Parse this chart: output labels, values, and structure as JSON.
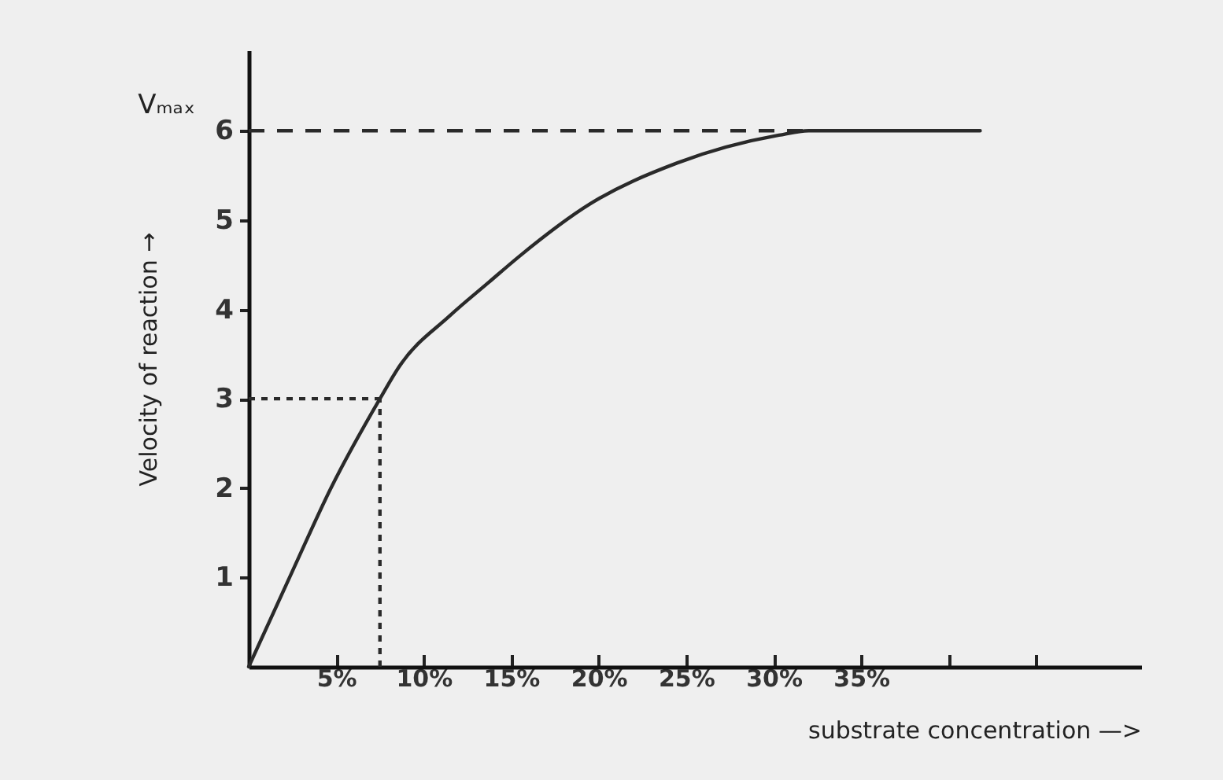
{
  "chart_data": {
    "type": "line",
    "xlabel": "substrate concentration —>",
    "ylabel": "Velocity of reaction →",
    "x": [
      0,
      2.5,
      4.7,
      7.5,
      8.6,
      11.5,
      13.7,
      15.5,
      19.5,
      24.5,
      30.3,
      32,
      41.8
    ],
    "series": [
      {
        "color": "#2a2a2a",
        "values": [
          0,
          1.07,
          2.0,
          3.0,
          3.36,
          3.93,
          4.3,
          4.6,
          5.18,
          5.64,
          5.95,
          6.0,
          6.0
        ]
      }
    ],
    "xlim": [
      0,
      51
    ],
    "xticks": [
      {
        "value": 5,
        "label": "5%"
      },
      {
        "value": 10,
        "label": "10%"
      },
      {
        "value": 15,
        "label": "15%"
      },
      {
        "value": 20,
        "label": "20%"
      },
      {
        "value": 25,
        "label": "25%"
      },
      {
        "value": 30,
        "label": "30%"
      },
      {
        "value": 35,
        "label": "35%"
      },
      {
        "value": 40,
        "label": null
      },
      {
        "value": 45,
        "label": null
      }
    ],
    "ylim": [
      0,
      6.9
    ],
    "yticks": [
      1,
      2,
      3,
      4,
      5,
      6
    ],
    "ref_lines": [
      {
        "axis": "y",
        "value": 6,
        "label": "Vₘₐₓ",
        "line_style": "dashed",
        "color": "#2a2a2a"
      },
      {
        "axis": "y",
        "value": 3,
        "line_style": "dotted",
        "color": "#2a2a2a"
      },
      {
        "axis": "x",
        "value": 7.5,
        "line_style": "dotted",
        "color": "#2a2a2a"
      }
    ],
    "grid": false,
    "marker": "none",
    "line_style": "solid"
  }
}
